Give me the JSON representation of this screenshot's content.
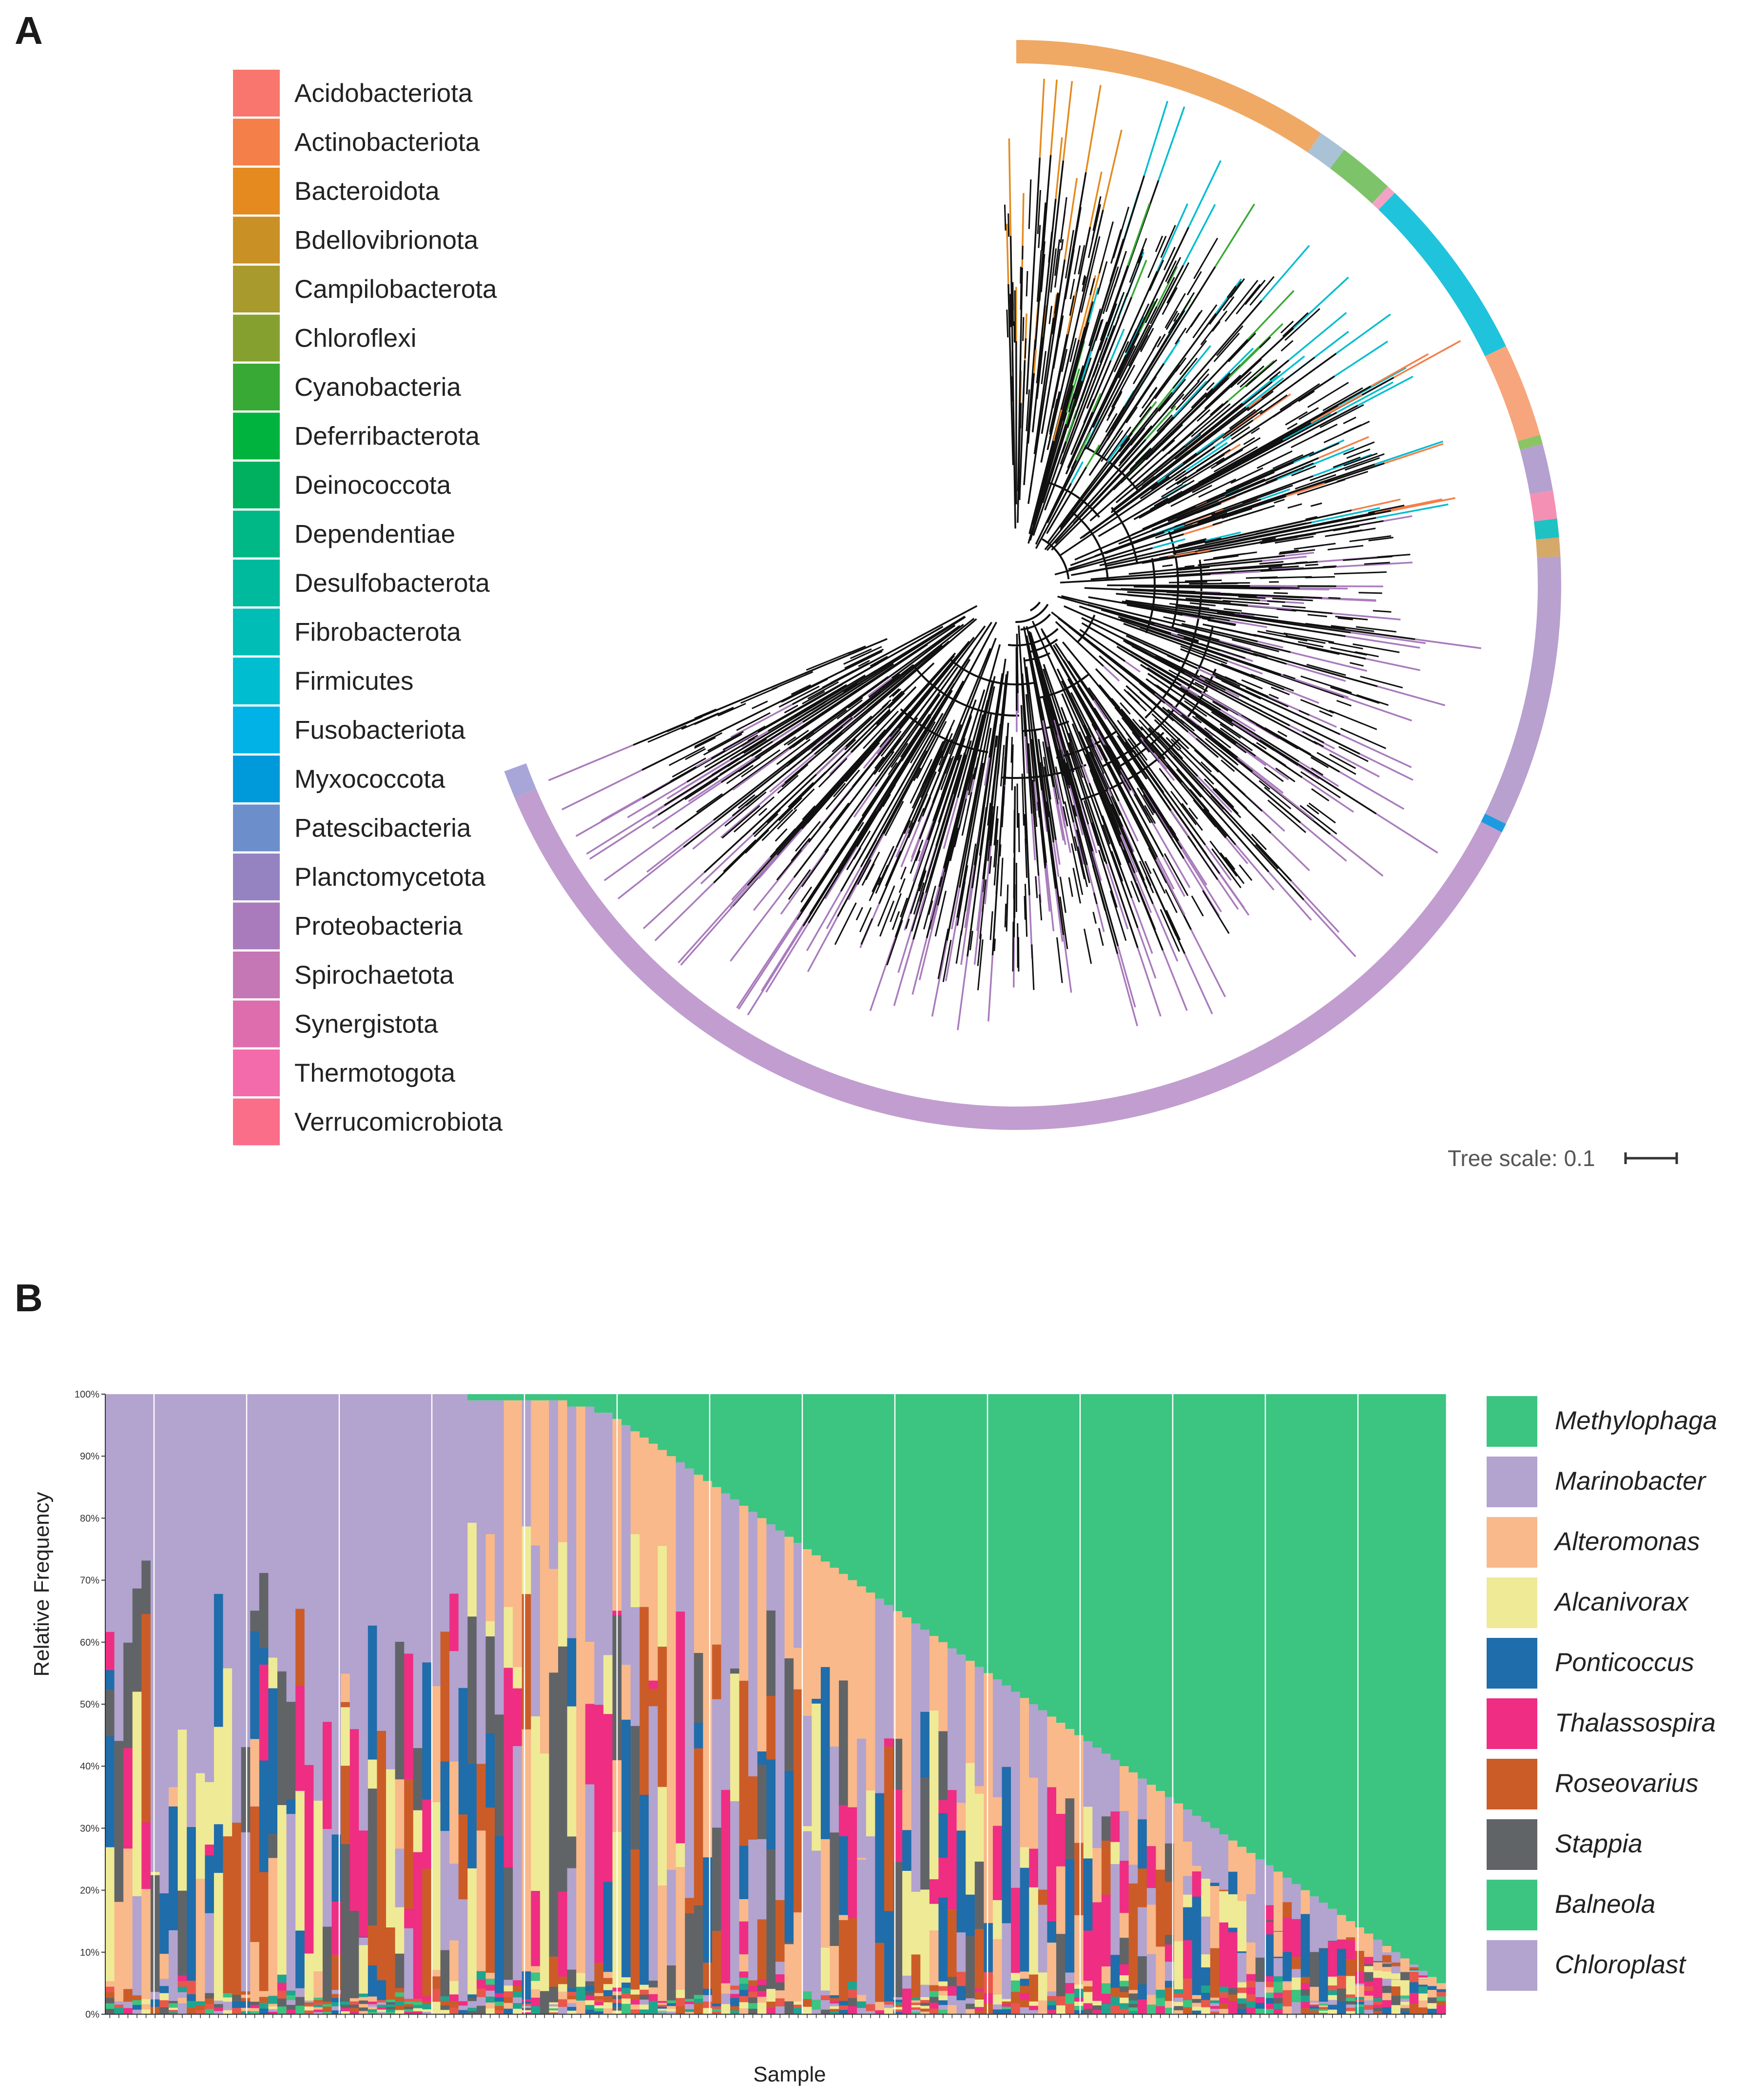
{
  "panel_a": {
    "letter": "A",
    "legend": [
      {
        "label": "Acidobacteriota",
        "color": "#F8766D"
      },
      {
        "label": "Actinobacteriota",
        "color": "#F47F49"
      },
      {
        "label": "Bacteroidota",
        "color": "#E58A1F"
      },
      {
        "label": "Bdellovibrionota",
        "color": "#C99025"
      },
      {
        "label": "Campilobacterota",
        "color": "#A89A2C"
      },
      {
        "label": "Chloroflexi",
        "color": "#86A030"
      },
      {
        "label": "Cyanobacteria",
        "color": "#39A935"
      },
      {
        "label": "Deferribacterota",
        "color": "#00B33E"
      },
      {
        "label": "Deinococcota",
        "color": "#00B05E"
      },
      {
        "label": "Dependentiae",
        "color": "#00B886"
      },
      {
        "label": "Desulfobacterota",
        "color": "#00BA9E"
      },
      {
        "label": "Fibrobacterota",
        "color": "#00BDB5"
      },
      {
        "label": "Firmicutes",
        "color": "#00BDCF"
      },
      {
        "label": "Fusobacteriota",
        "color": "#00B2E6"
      },
      {
        "label": "Myxococcota",
        "color": "#0099DA"
      },
      {
        "label": "Patescibacteria",
        "color": "#6C8FCC"
      },
      {
        "label": "Planctomycetota",
        "color": "#9583C1"
      },
      {
        "label": "Proteobacteria",
        "color": "#A97BBC"
      },
      {
        "label": "Spirochaetota",
        "color": "#C576B4"
      },
      {
        "label": "Synergistota",
        "color": "#DE6DAE"
      },
      {
        "label": "Thermotogota",
        "color": "#F36BAA"
      },
      {
        "label": "Verrucomicrobiota",
        "color": "#FA6E8A"
      }
    ],
    "tree_scale_label": "Tree scale: 0.1"
  },
  "panel_b": {
    "letter": "B"
  },
  "chart_data": {
    "type": "bar",
    "title": "",
    "xlabel": "Sample",
    "ylabel": "Relative Frequency",
    "ylim": [
      0,
      100
    ],
    "yticks": [
      "0%",
      "10%",
      "20%",
      "30%",
      "40%",
      "50%",
      "60%",
      "70%",
      "80%",
      "90%",
      "100%"
    ],
    "legend_position": "right",
    "stacked": true,
    "series_order": [
      "Methylophaga",
      "Marinobacter",
      "Alteromonas",
      "Alcanivorax",
      "Ponticoccus",
      "Thalassospira",
      "Roseovarius",
      "Stappia",
      "Balneola",
      "Chloroplast"
    ],
    "legend": [
      {
        "name": "Methylophaga",
        "color": "#3CC481"
      },
      {
        "name": "Marinobacter",
        "color": "#B3A3CF"
      },
      {
        "name": "Alteromonas",
        "color": "#F9B98A"
      },
      {
        "name": "Alcanivorax",
        "color": "#EFEA96"
      },
      {
        "name": "Ponticoccus",
        "color": "#1F6DAB"
      },
      {
        "name": "Thalassospira",
        "color": "#EF2D83"
      },
      {
        "name": "Roseovarius",
        "color": "#CB5C28"
      },
      {
        "name": "Stappia",
        "color": "#616467"
      },
      {
        "name": "Balneola",
        "color": "#3CC481"
      },
      {
        "name": "Chloroplast",
        "color": "#B3A3CF"
      }
    ],
    "methylophaga_percent": [
      0,
      0,
      0,
      0,
      0,
      0,
      0,
      0,
      0,
      0,
      0,
      0,
      0,
      0,
      0,
      0,
      0,
      0,
      0,
      0,
      0,
      0,
      0,
      0,
      0,
      0,
      0,
      0,
      0,
      0,
      0,
      0,
      0,
      0,
      0,
      0,
      0,
      0,
      0,
      0,
      1,
      1,
      1,
      1,
      1,
      1,
      1,
      1,
      1,
      1,
      1,
      2,
      2,
      2,
      3,
      3,
      4,
      5,
      6,
      7,
      8,
      9,
      10,
      11,
      12,
      13,
      14,
      15,
      16,
      17,
      18,
      19,
      20,
      21,
      22,
      23,
      24,
      25,
      26,
      27,
      28,
      29,
      30,
      31,
      32,
      33,
      34,
      35,
      36,
      37,
      38,
      39,
      40,
      41,
      42,
      43,
      44,
      45,
      46,
      47,
      48,
      49,
      50,
      51,
      52,
      53,
      54,
      55,
      56,
      57,
      58,
      59,
      60,
      61,
      62,
      63,
      64,
      65,
      66,
      67,
      68,
      69,
      70,
      71,
      72,
      73,
      74,
      75,
      76,
      77,
      78,
      79,
      80,
      81,
      82,
      83,
      84,
      85,
      86,
      87,
      88,
      89,
      90,
      91,
      92,
      93,
      94,
      95
    ]
  }
}
